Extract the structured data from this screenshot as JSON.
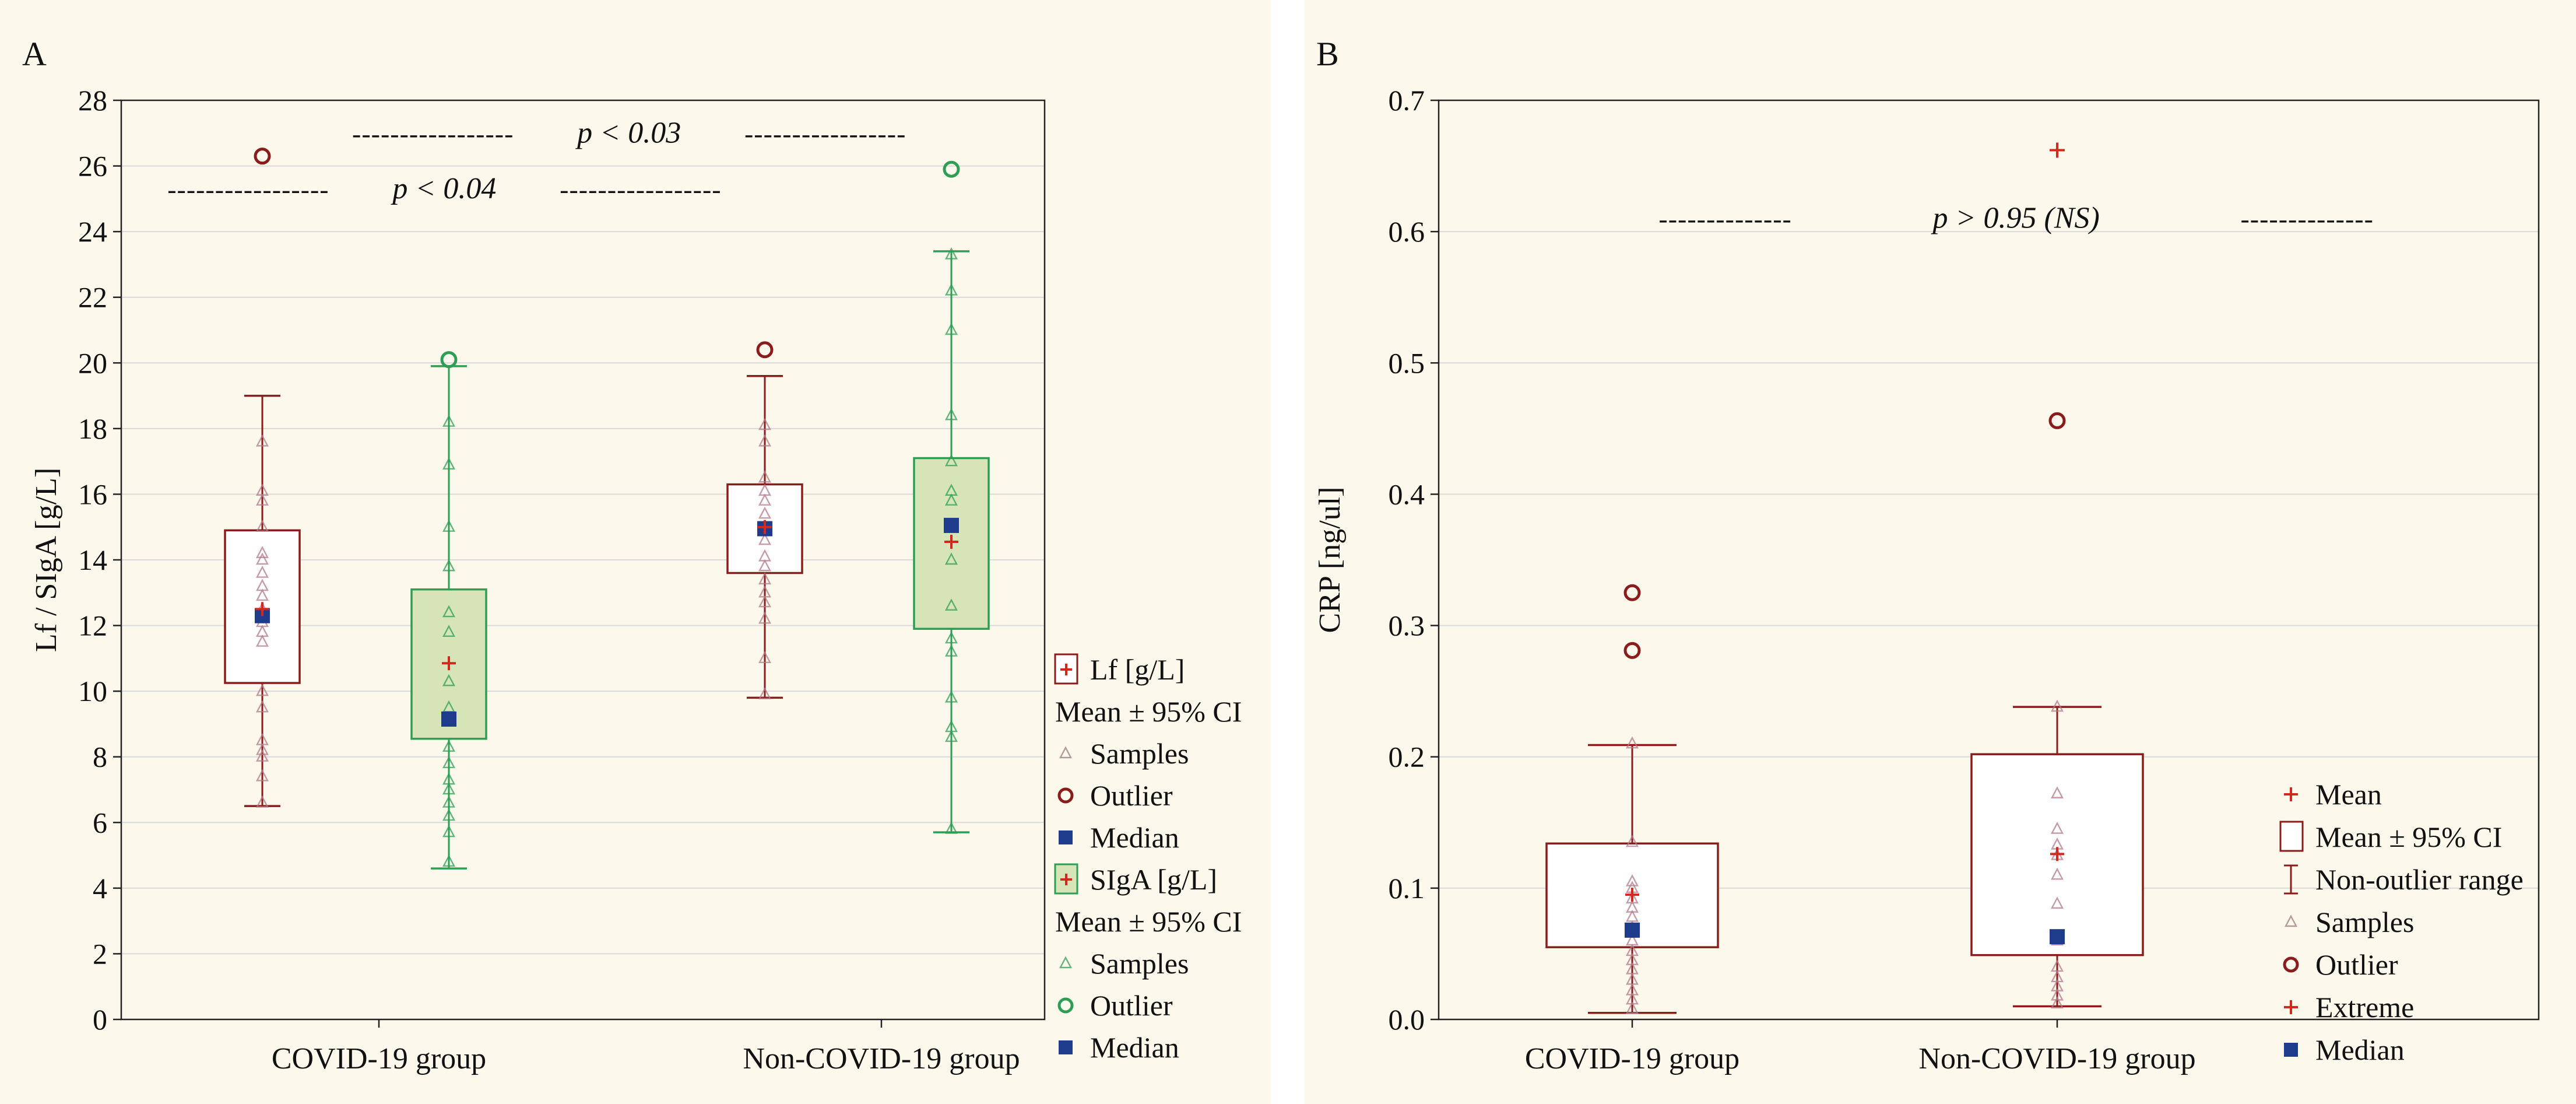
{
  "colors": {
    "panel_bg": "#fdf8ec",
    "lf": "#8b1c1c",
    "siga": "#2e9e55",
    "siga_fill": "#d6e4b8",
    "mean": "#d2281e",
    "median": "#1f3c8c",
    "grid": "#d9d9d9",
    "axis": "#222222"
  },
  "chart_data": [
    {
      "panel_label": "A",
      "type": "box",
      "ylabel": "Lf / SIgA [g/L]",
      "ylim": [
        0,
        28
      ],
      "yticks": [
        0,
        2,
        4,
        6,
        8,
        10,
        12,
        14,
        16,
        18,
        20,
        22,
        24,
        26,
        28
      ],
      "ytick_labels": [
        "0",
        "2",
        "4",
        "6",
        "8",
        "10",
        "12",
        "14",
        "16",
        "18",
        "20",
        "22",
        "24",
        "26",
        "28"
      ],
      "categories": [
        "COVID-19 group",
        "Non-COVID-19 group"
      ],
      "annotations": [
        {
          "dash_left": "-----------------",
          "text": "p < 0.03",
          "dash_right": "-----------------",
          "y": 27.0,
          "x_from": 0.25,
          "x_to": 0.85
        },
        {
          "dash_left": "-----------------",
          "text": "p < 0.04",
          "dash_right": "-----------------",
          "y": 25.3,
          "x_from": 0.05,
          "x_to": 0.65
        }
      ],
      "series": [
        {
          "name": "Lf [g/L]",
          "color_key": "lf",
          "boxes": [
            {
              "category": 0,
              "whisker_low": 6.5,
              "whisker_high": 19.0,
              "ci_low": 10.25,
              "ci_high": 14.9,
              "mean": 12.5,
              "median": 12.3,
              "outliers": [
                26.3
              ],
              "samples": [
                6.6,
                7.4,
                8.0,
                8.2,
                8.5,
                9.5,
                10.0,
                11.5,
                11.8,
                12.1,
                12.5,
                12.9,
                13.2,
                13.6,
                14.0,
                14.2,
                15.0,
                15.8,
                16.1,
                17.6
              ]
            },
            {
              "category": 1,
              "whisker_low": 9.8,
              "whisker_high": 19.6,
              "ci_low": 13.6,
              "ci_high": 16.3,
              "mean": 15.0,
              "median": 14.95,
              "outliers": [
                20.4
              ],
              "samples": [
                9.9,
                11.0,
                12.2,
                12.7,
                13.0,
                13.4,
                13.8,
                14.1,
                14.6,
                15.0,
                15.4,
                15.8,
                16.1,
                16.5,
                17.6,
                18.1
              ]
            }
          ]
        },
        {
          "name": "SIgA [g/L]",
          "color_key": "siga",
          "boxes": [
            {
              "category": 0,
              "whisker_low": 4.6,
              "whisker_high": 19.9,
              "ci_low": 8.55,
              "ci_high": 13.1,
              "mean": 10.85,
              "median": 9.15,
              "outliers": [
                20.1
              ],
              "samples": [
                4.8,
                5.7,
                6.2,
                6.6,
                7.0,
                7.3,
                7.8,
                8.3,
                9.5,
                10.3,
                11.8,
                12.4,
                13.8,
                15.0,
                16.9,
                18.2
              ]
            },
            {
              "category": 1,
              "whisker_low": 5.7,
              "whisker_high": 23.4,
              "ci_low": 11.9,
              "ci_high": 17.1,
              "mean": 14.55,
              "median": 15.05,
              "outliers": [
                25.9
              ],
              "samples": [
                5.8,
                8.6,
                8.9,
                9.8,
                11.2,
                11.6,
                12.6,
                14.0,
                15.8,
                16.1,
                17.0,
                18.4,
                21.0,
                22.2,
                23.3
              ]
            }
          ]
        }
      ],
      "legend": {
        "position": "right",
        "entries": [
          {
            "symbol": "box-mean",
            "group": "lf",
            "label": "Lf [g/L]"
          },
          {
            "symbol": "none",
            "group": "lf",
            "label": "Mean ± 95% CI"
          },
          {
            "symbol": "triangle",
            "group": "lf",
            "label": "Samples"
          },
          {
            "symbol": "circle",
            "group": "lf",
            "label": "Outlier"
          },
          {
            "symbol": "square",
            "group": "median",
            "label": "Median"
          },
          {
            "symbol": "box-mean",
            "group": "siga",
            "label": "SIgA [g/L]"
          },
          {
            "symbol": "none",
            "group": "siga",
            "label": "Mean ± 95% CI"
          },
          {
            "symbol": "triangle",
            "group": "siga",
            "label": "Samples"
          },
          {
            "symbol": "circle",
            "group": "siga",
            "label": "Outlier"
          },
          {
            "symbol": "square",
            "group": "median",
            "label": "Median"
          }
        ]
      }
    },
    {
      "panel_label": "B",
      "type": "box",
      "ylabel": "CRP [ng/ul]",
      "ylim": [
        0,
        0.7
      ],
      "yticks": [
        0,
        0.1,
        0.2,
        0.3,
        0.4,
        0.5,
        0.6,
        0.7
      ],
      "ytick_labels": [
        "0.0",
        "0.1",
        "0.2",
        "0.3",
        "0.4",
        "0.5",
        "0.6",
        "0.7"
      ],
      "categories": [
        "COVID-19 group",
        "Non-COVID-19 group"
      ],
      "annotations": [
        {
          "dash_left": "--------------",
          "text": "p > 0.95 (NS)",
          "dash_right": "--------------",
          "y": 0.61,
          "x_from": 0.2,
          "x_to": 0.85
        }
      ],
      "series": [
        {
          "name": "CRP",
          "color_key": "lf",
          "boxes": [
            {
              "category": 0,
              "whisker_low": 0.005,
              "whisker_high": 0.209,
              "ci_low": 0.055,
              "ci_high": 0.134,
              "mean": 0.095,
              "median": 0.068,
              "outliers": [
                0.325,
                0.281
              ],
              "extremes": [],
              "samples": [
                0.008,
                0.015,
                0.022,
                0.03,
                0.038,
                0.045,
                0.052,
                0.06,
                0.07,
                0.078,
                0.085,
                0.092,
                0.1,
                0.105,
                0.135,
                0.21
              ]
            },
            {
              "category": 1,
              "whisker_low": 0.01,
              "whisker_high": 0.238,
              "ci_low": 0.049,
              "ci_high": 0.202,
              "mean": 0.126,
              "median": 0.063,
              "outliers": [
                0.456
              ],
              "extremes": [
                0.662
              ],
              "samples": [
                0.012,
                0.018,
                0.025,
                0.032,
                0.04,
                0.06,
                0.088,
                0.11,
                0.125,
                0.133,
                0.145,
                0.172,
                0.238
              ]
            }
          ]
        }
      ],
      "legend": {
        "position": "bottom-right",
        "entries": [
          {
            "symbol": "plus",
            "group": "lf",
            "label": "Mean"
          },
          {
            "symbol": "box",
            "group": "lf",
            "label": "Mean ± 95% CI"
          },
          {
            "symbol": "whisker",
            "group": "lf",
            "label": "Non-outlier range"
          },
          {
            "symbol": "triangle",
            "group": "lf",
            "label": "Samples"
          },
          {
            "symbol": "circle",
            "group": "lf",
            "label": "Outlier"
          },
          {
            "symbol": "plus",
            "group": "lf",
            "label": "Extreme"
          },
          {
            "symbol": "square",
            "group": "median",
            "label": "Median"
          }
        ]
      }
    }
  ]
}
